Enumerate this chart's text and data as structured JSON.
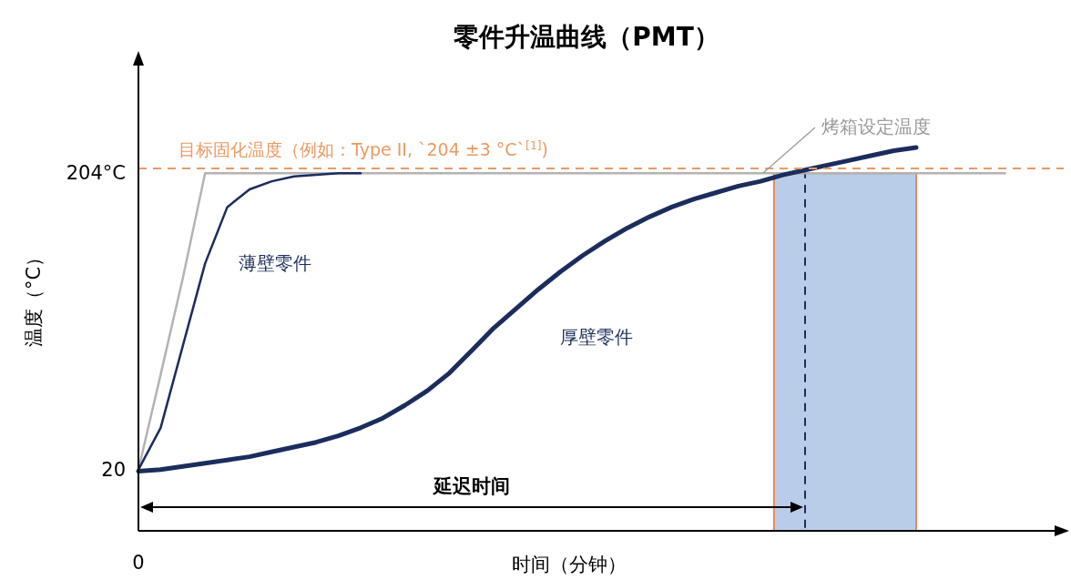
{
  "chart_data": {
    "type": "line",
    "title": "零件升温曲线（PMT）",
    "xlabel": "时间（分钟）",
    "ylabel": "温度（°C）",
    "categories": [
      "0",
      null,
      null,
      null,
      null,
      null,
      null,
      null,
      null,
      null,
      null,
      null,
      null,
      null,
      null,
      null,
      null,
      null,
      null,
      null,
      null,
      null,
      null,
      null,
      null,
      null,
      null,
      null,
      null,
      null,
      null,
      null,
      null,
      null,
      null,
      null,
      null,
      null,
      null,
      null,
      null
    ],
    "ylim": [
      -18,
      272
    ],
    "yticks": [
      {
        "value": 20,
        "label": "20"
      },
      {
        "value": 204,
        "label": "204°C"
      }
    ],
    "series": [
      {
        "name": "烤箱设定温度",
        "color": "#b3b3b3",
        "values": [
          20,
          79,
          139,
          204,
          204,
          204,
          204,
          204,
          204,
          204,
          204,
          204,
          204,
          204,
          204,
          204,
          204,
          204,
          204,
          204,
          204,
          204,
          204,
          204,
          204,
          204,
          204,
          204,
          204,
          204,
          204,
          204,
          204,
          204,
          204,
          204,
          204,
          204,
          204,
          204,
          null
        ]
      },
      {
        "name": "薄壁零件",
        "color": "#1b2d5c",
        "values": [
          20,
          46,
          97,
          148,
          183,
          194,
          199,
          202,
          203,
          204,
          204,
          null,
          null,
          null,
          null,
          null,
          null,
          null,
          null,
          null,
          null,
          null,
          null,
          null,
          null,
          null,
          null,
          null,
          null,
          null,
          null,
          null,
          null,
          null,
          null,
          null,
          null,
          null,
          null,
          null,
          null
        ]
      },
      {
        "name": "厚壁零件",
        "color": "#1b2d5c",
        "values": [
          19,
          20,
          22,
          24,
          26,
          28,
          31,
          34,
          37,
          41,
          46,
          52,
          60,
          69,
          80,
          94,
          108,
          120,
          132,
          143,
          153,
          162,
          170,
          177,
          183,
          188,
          192,
          196,
          199,
          203,
          206,
          209,
          212,
          215,
          218,
          220,
          null,
          null,
          null,
          null,
          null
        ]
      }
    ],
    "ref_lines": [
      {
        "axis": "y",
        "value": 207,
        "label": "目标固化温度（例如：Type II, `204 ±3 °C`$^{[1]}$)",
        "color": "#eb9a62",
        "line_style": "dashed"
      }
    ],
    "annotations": [
      "延迟时间"
    ]
  }
}
